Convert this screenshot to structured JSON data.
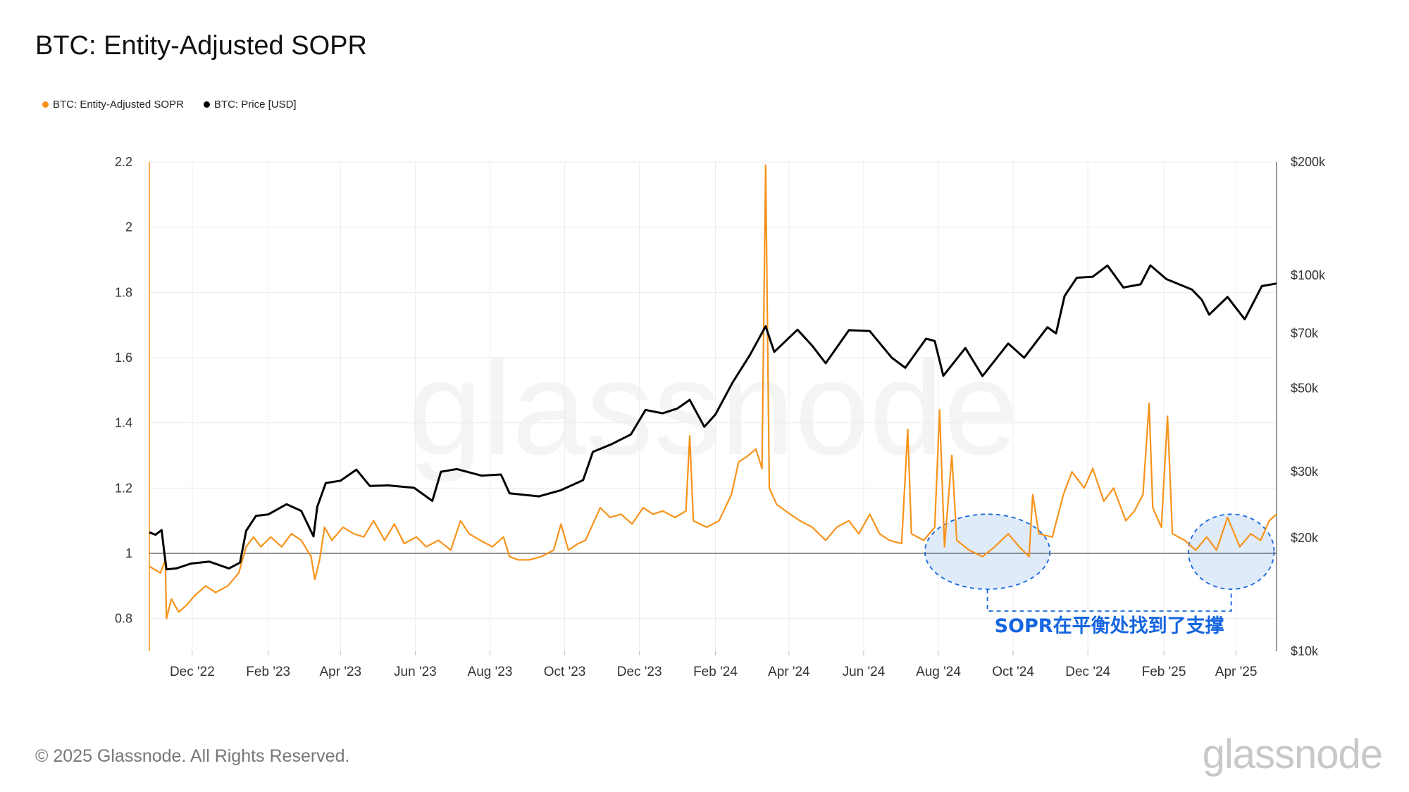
{
  "page": {
    "title": "BTC: Entity-Adjusted SOPR",
    "footer": "© 2025 Glassnode. All Rights Reserved.",
    "brand": "glassnode",
    "watermark": "glassnode"
  },
  "legend": {
    "sopr": "BTC: Entity-Adjusted SOPR",
    "price": "BTC: Price [USD]"
  },
  "colors": {
    "sopr": "#f7931a",
    "price": "#000000",
    "annotation": "#1565e0",
    "ellipse_fill": "#dbe8f9",
    "grid": "#ececec",
    "baseline": "#555555"
  },
  "chart_data": {
    "type": "line",
    "title": "BTC: Entity-Adjusted SOPR",
    "x_range": [
      "2022-10-27",
      "2025-05-04"
    ],
    "x_ticks": [
      {
        "label": "Dec '22",
        "date": "2022-12-01"
      },
      {
        "label": "Feb '23",
        "date": "2023-02-01"
      },
      {
        "label": "Apr '23",
        "date": "2023-04-01"
      },
      {
        "label": "Jun '23",
        "date": "2023-06-01"
      },
      {
        "label": "Aug '23",
        "date": "2023-08-01"
      },
      {
        "label": "Oct '23",
        "date": "2023-10-01"
      },
      {
        "label": "Dec '23",
        "date": "2023-12-01"
      },
      {
        "label": "Feb '24",
        "date": "2024-02-01"
      },
      {
        "label": "Apr '24",
        "date": "2024-04-01"
      },
      {
        "label": "Jun '24",
        "date": "2024-06-01"
      },
      {
        "label": "Aug '24",
        "date": "2024-08-01"
      },
      {
        "label": "Oct '24",
        "date": "2024-10-01"
      },
      {
        "label": "Dec '24",
        "date": "2024-12-01"
      },
      {
        "label": "Feb '25",
        "date": "2025-02-01"
      },
      {
        "label": "Apr '25",
        "date": "2025-04-01"
      }
    ],
    "y_left": {
      "range": [
        0.7,
        2.2
      ],
      "ticks": [
        {
          "label": "0.8",
          "value": 0.8
        },
        {
          "label": "1",
          "value": 1.0
        },
        {
          "label": "1.2",
          "value": 1.2
        },
        {
          "label": "1.4",
          "value": 1.4
        },
        {
          "label": "1.6",
          "value": 1.6
        },
        {
          "label": "1.8",
          "value": 1.8
        },
        {
          "label": "2",
          "value": 2.0
        },
        {
          "label": "2.2",
          "value": 2.2
        }
      ],
      "reference_line": 1.0
    },
    "y_right": {
      "scale": "log",
      "range": [
        10000,
        200000
      ],
      "ticks": [
        {
          "label": "$10k",
          "value": 10000
        },
        {
          "label": "$20k",
          "value": 20000
        },
        {
          "label": "$30k",
          "value": 30000
        },
        {
          "label": "$50k",
          "value": 50000
        },
        {
          "label": "$70k",
          "value": 70000
        },
        {
          "label": "$100k",
          "value": 100000
        },
        {
          "label": "$200k",
          "value": 200000
        }
      ]
    },
    "series": [
      {
        "name": "BTC: Entity-Adjusted SOPR",
        "axis": "left",
        "points": [
          [
            "2022-10-27",
            0.96
          ],
          [
            "2022-11-05",
            0.94
          ],
          [
            "2022-11-09",
            0.98
          ],
          [
            "2022-11-10",
            0.8
          ],
          [
            "2022-11-14",
            0.86
          ],
          [
            "2022-11-20",
            0.82
          ],
          [
            "2022-11-26",
            0.84
          ],
          [
            "2022-12-03",
            0.87
          ],
          [
            "2022-12-12",
            0.9
          ],
          [
            "2022-12-20",
            0.88
          ],
          [
            "2022-12-30",
            0.9
          ],
          [
            "2023-01-08",
            0.94
          ],
          [
            "2023-01-14",
            1.02
          ],
          [
            "2023-01-20",
            1.05
          ],
          [
            "2023-01-26",
            1.02
          ],
          [
            "2023-02-03",
            1.05
          ],
          [
            "2023-02-12",
            1.02
          ],
          [
            "2023-02-20",
            1.06
          ],
          [
            "2023-02-28",
            1.04
          ],
          [
            "2023-03-08",
            0.99
          ],
          [
            "2023-03-11",
            0.92
          ],
          [
            "2023-03-15",
            0.98
          ],
          [
            "2023-03-19",
            1.08
          ],
          [
            "2023-03-25",
            1.04
          ],
          [
            "2023-04-03",
            1.08
          ],
          [
            "2023-04-12",
            1.06
          ],
          [
            "2023-04-20",
            1.05
          ],
          [
            "2023-04-28",
            1.1
          ],
          [
            "2023-05-07",
            1.04
          ],
          [
            "2023-05-15",
            1.09
          ],
          [
            "2023-05-23",
            1.03
          ],
          [
            "2023-06-02",
            1.05
          ],
          [
            "2023-06-10",
            1.02
          ],
          [
            "2023-06-20",
            1.04
          ],
          [
            "2023-06-30",
            1.01
          ],
          [
            "2023-07-08",
            1.1
          ],
          [
            "2023-07-15",
            1.06
          ],
          [
            "2023-07-24",
            1.04
          ],
          [
            "2023-08-03",
            1.02
          ],
          [
            "2023-08-12",
            1.05
          ],
          [
            "2023-08-17",
            0.99
          ],
          [
            "2023-08-24",
            0.98
          ],
          [
            "2023-09-02",
            0.98
          ],
          [
            "2023-09-12",
            0.99
          ],
          [
            "2023-09-22",
            1.01
          ],
          [
            "2023-09-28",
            1.09
          ],
          [
            "2023-10-04",
            1.01
          ],
          [
            "2023-10-12",
            1.03
          ],
          [
            "2023-10-18",
            1.04
          ],
          [
            "2023-10-24",
            1.09
          ],
          [
            "2023-10-30",
            1.14
          ],
          [
            "2023-11-07",
            1.11
          ],
          [
            "2023-11-16",
            1.12
          ],
          [
            "2023-11-25",
            1.09
          ],
          [
            "2023-12-04",
            1.14
          ],
          [
            "2023-12-12",
            1.12
          ],
          [
            "2023-12-20",
            1.13
          ],
          [
            "2023-12-30",
            1.11
          ],
          [
            "2024-01-08",
            1.13
          ],
          [
            "2024-01-11",
            1.36
          ],
          [
            "2024-01-14",
            1.1
          ],
          [
            "2024-01-25",
            1.08
          ],
          [
            "2024-02-04",
            1.1
          ],
          [
            "2024-02-14",
            1.18
          ],
          [
            "2024-02-20",
            1.28
          ],
          [
            "2024-02-28",
            1.3
          ],
          [
            "2024-03-05",
            1.32
          ],
          [
            "2024-03-10",
            1.26
          ],
          [
            "2024-03-13",
            2.19
          ],
          [
            "2024-03-16",
            1.2
          ],
          [
            "2024-03-22",
            1.15
          ],
          [
            "2024-04-02",
            1.12
          ],
          [
            "2024-04-10",
            1.1
          ],
          [
            "2024-04-20",
            1.08
          ],
          [
            "2024-05-01",
            1.04
          ],
          [
            "2024-05-10",
            1.08
          ],
          [
            "2024-05-20",
            1.1
          ],
          [
            "2024-05-28",
            1.06
          ],
          [
            "2024-06-06",
            1.12
          ],
          [
            "2024-06-14",
            1.06
          ],
          [
            "2024-06-22",
            1.04
          ],
          [
            "2024-07-02",
            1.03
          ],
          [
            "2024-07-07",
            1.38
          ],
          [
            "2024-07-10",
            1.06
          ],
          [
            "2024-07-20",
            1.04
          ],
          [
            "2024-07-29",
            1.08
          ],
          [
            "2024-08-02",
            1.44
          ],
          [
            "2024-08-06",
            1.02
          ],
          [
            "2024-08-12",
            1.3
          ],
          [
            "2024-08-16",
            1.04
          ],
          [
            "2024-08-26",
            1.01
          ],
          [
            "2024-09-06",
            0.99
          ],
          [
            "2024-09-16",
            1.02
          ],
          [
            "2024-09-27",
            1.06
          ],
          [
            "2024-10-06",
            1.02
          ],
          [
            "2024-10-14",
            0.99
          ],
          [
            "2024-10-17",
            1.18
          ],
          [
            "2024-10-22",
            1.06
          ],
          [
            "2024-11-02",
            1.05
          ],
          [
            "2024-11-11",
            1.18
          ],
          [
            "2024-11-18",
            1.25
          ],
          [
            "2024-11-28",
            1.2
          ],
          [
            "2024-12-05",
            1.26
          ],
          [
            "2024-12-14",
            1.16
          ],
          [
            "2024-12-22",
            1.2
          ],
          [
            "2025-01-01",
            1.1
          ],
          [
            "2025-01-08",
            1.13
          ],
          [
            "2025-01-15",
            1.18
          ],
          [
            "2025-01-20",
            1.46
          ],
          [
            "2025-01-23",
            1.14
          ],
          [
            "2025-01-30",
            1.08
          ],
          [
            "2025-02-04",
            1.42
          ],
          [
            "2025-02-08",
            1.06
          ],
          [
            "2025-02-18",
            1.04
          ],
          [
            "2025-02-27",
            1.01
          ],
          [
            "2025-03-08",
            1.05
          ],
          [
            "2025-03-16",
            1.01
          ],
          [
            "2025-03-25",
            1.11
          ],
          [
            "2025-04-04",
            1.02
          ],
          [
            "2025-04-13",
            1.06
          ],
          [
            "2025-04-21",
            1.04
          ],
          [
            "2025-04-28",
            1.1
          ],
          [
            "2025-05-04",
            1.12
          ]
        ]
      },
      {
        "name": "BTC: Price [USD]",
        "axis": "right",
        "points": [
          [
            "2022-10-27",
            20700
          ],
          [
            "2022-11-01",
            20400
          ],
          [
            "2022-11-06",
            21000
          ],
          [
            "2022-11-08",
            18500
          ],
          [
            "2022-11-10",
            16500
          ],
          [
            "2022-11-18",
            16600
          ],
          [
            "2022-11-30",
            17100
          ],
          [
            "2022-12-15",
            17300
          ],
          [
            "2022-12-31",
            16600
          ],
          [
            "2023-01-09",
            17200
          ],
          [
            "2023-01-14",
            20900
          ],
          [
            "2023-01-22",
            22900
          ],
          [
            "2023-02-01",
            23100
          ],
          [
            "2023-02-16",
            24600
          ],
          [
            "2023-02-28",
            23600
          ],
          [
            "2023-03-10",
            20200
          ],
          [
            "2023-03-13",
            24200
          ],
          [
            "2023-03-20",
            28000
          ],
          [
            "2023-04-01",
            28400
          ],
          [
            "2023-04-14",
            30400
          ],
          [
            "2023-04-25",
            27500
          ],
          [
            "2023-05-10",
            27600
          ],
          [
            "2023-05-31",
            27200
          ],
          [
            "2023-06-15",
            25100
          ],
          [
            "2023-06-22",
            30000
          ],
          [
            "2023-07-05",
            30500
          ],
          [
            "2023-07-25",
            29300
          ],
          [
            "2023-08-10",
            29500
          ],
          [
            "2023-08-17",
            26300
          ],
          [
            "2023-09-10",
            25800
          ],
          [
            "2023-09-28",
            26800
          ],
          [
            "2023-10-16",
            28500
          ],
          [
            "2023-10-24",
            33900
          ],
          [
            "2023-11-08",
            35500
          ],
          [
            "2023-11-24",
            37700
          ],
          [
            "2023-12-06",
            43800
          ],
          [
            "2023-12-20",
            42900
          ],
          [
            "2024-01-01",
            44200
          ],
          [
            "2024-01-11",
            46600
          ],
          [
            "2024-01-23",
            39500
          ],
          [
            "2024-02-01",
            42600
          ],
          [
            "2024-02-15",
            51800
          ],
          [
            "2024-02-29",
            61200
          ],
          [
            "2024-03-13",
            73100
          ],
          [
            "2024-03-20",
            62500
          ],
          [
            "2024-04-08",
            71600
          ],
          [
            "2024-04-20",
            64900
          ],
          [
            "2024-05-01",
            58300
          ],
          [
            "2024-05-20",
            71400
          ],
          [
            "2024-06-06",
            71000
          ],
          [
            "2024-06-24",
            60300
          ],
          [
            "2024-07-05",
            56700
          ],
          [
            "2024-07-22",
            67800
          ],
          [
            "2024-07-29",
            66800
          ],
          [
            "2024-08-05",
            54000
          ],
          [
            "2024-08-23",
            64000
          ],
          [
            "2024-09-06",
            53900
          ],
          [
            "2024-09-27",
            65800
          ],
          [
            "2024-10-10",
            60300
          ],
          [
            "2024-10-29",
            72700
          ],
          [
            "2024-11-05",
            70000
          ],
          [
            "2024-11-12",
            88000
          ],
          [
            "2024-11-22",
            98400
          ],
          [
            "2024-12-05",
            99000
          ],
          [
            "2024-12-17",
            106100
          ],
          [
            "2024-12-30",
            92700
          ],
          [
            "2025-01-13",
            94500
          ],
          [
            "2025-01-21",
            106200
          ],
          [
            "2025-02-03",
            97600
          ],
          [
            "2025-02-24",
            91500
          ],
          [
            "2025-03-04",
            86000
          ],
          [
            "2025-03-10",
            78500
          ],
          [
            "2025-03-25",
            87500
          ],
          [
            "2025-04-08",
            76300
          ],
          [
            "2025-04-22",
            93500
          ],
          [
            "2025-05-04",
            95000
          ]
        ]
      }
    ],
    "annotation": {
      "text": "SOPR在平衡处找到了支撑",
      "regions": [
        {
          "x_from": "2024-07-21",
          "x_to": "2024-10-31",
          "y_from": 0.89,
          "y_to": 1.12
        },
        {
          "x_from": "2025-02-21",
          "x_to": "2025-05-02",
          "y_from": 0.89,
          "y_to": 1.12
        }
      ]
    }
  }
}
